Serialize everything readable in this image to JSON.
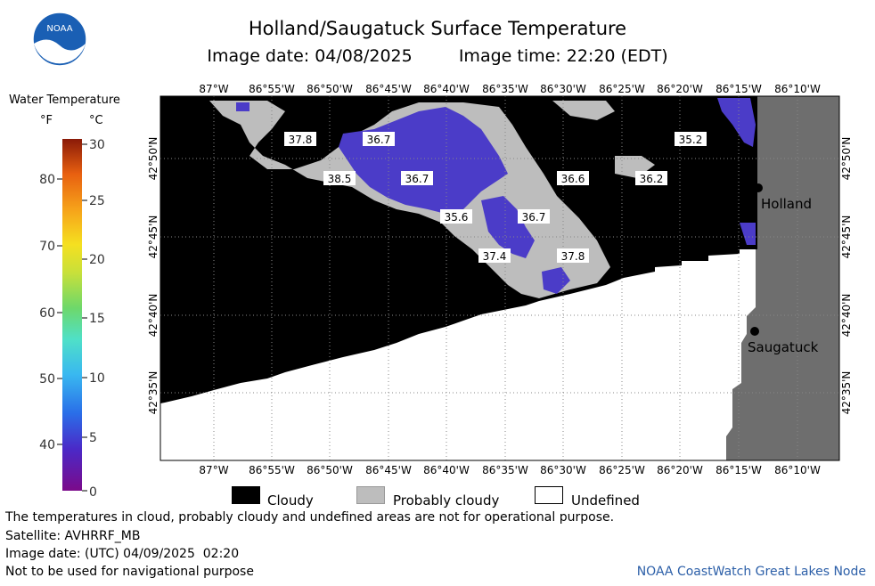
{
  "header": {
    "title": "Holland/Saugatuck Surface Temperature",
    "image_date_label": "Image date: 04/08/2025",
    "image_time_label": "Image time: 22:20 (EDT)",
    "logo_text": "NOAA"
  },
  "colorbar": {
    "title": "Water Temperature",
    "unit_f": "°F",
    "unit_c": "°C",
    "f_ticks": [
      "80",
      "70",
      "60",
      "50",
      "40"
    ],
    "c_ticks": [
      "30",
      "25",
      "20",
      "15",
      "10",
      "5",
      "0"
    ]
  },
  "axes": {
    "top_lon_labels": [
      "87°W",
      "86°55'W",
      "86°50'W",
      "86°45'W",
      "86°40'W",
      "86°35'W",
      "86°30'W",
      "86°25'W",
      "86°20'W",
      "86°15'W",
      "86°10'W"
    ],
    "bottom_lon_labels": [
      "87°W",
      "86°55'W",
      "86°50'W",
      "86°45'W",
      "86°40'W",
      "86°35'W",
      "86°30'W",
      "86°25'W",
      "86°20'W",
      "86°15'W",
      "86°10'W"
    ],
    "lat_labels": [
      "42°50'N",
      "42°45'N",
      "42°40'N",
      "42°35'N"
    ]
  },
  "map": {
    "temperature_labels": [
      "37.8",
      "36.7",
      "38.5",
      "36.7",
      "35.6",
      "36.7",
      "36.6",
      "36.2",
      "35.2",
      "37.4",
      "37.8"
    ],
    "cities": [
      "Holland",
      "Saugatuck"
    ],
    "colors": {
      "cloudy": "#000000",
      "probably_cloudy": "#bdbdbd",
      "undefined": "#ffffff",
      "land": "#6e6e6e",
      "cold_water": "#4b3cc8"
    }
  },
  "legend": {
    "cloudy": "Cloudy",
    "probably_cloudy": "Probably cloudy",
    "undefined": "Undefined"
  },
  "footer": {
    "note": "The temperatures in cloud, probably cloudy and undefined areas are not for operational purpose.",
    "satellite": "Satellite: AVHRRF_MB",
    "image_date_utc": "Image date: (UTC) 04/09/2025  02:20",
    "nav_warning": "Not to be used for navigational purpose",
    "credit": "NOAA CoastWatch Great Lakes Node"
  }
}
